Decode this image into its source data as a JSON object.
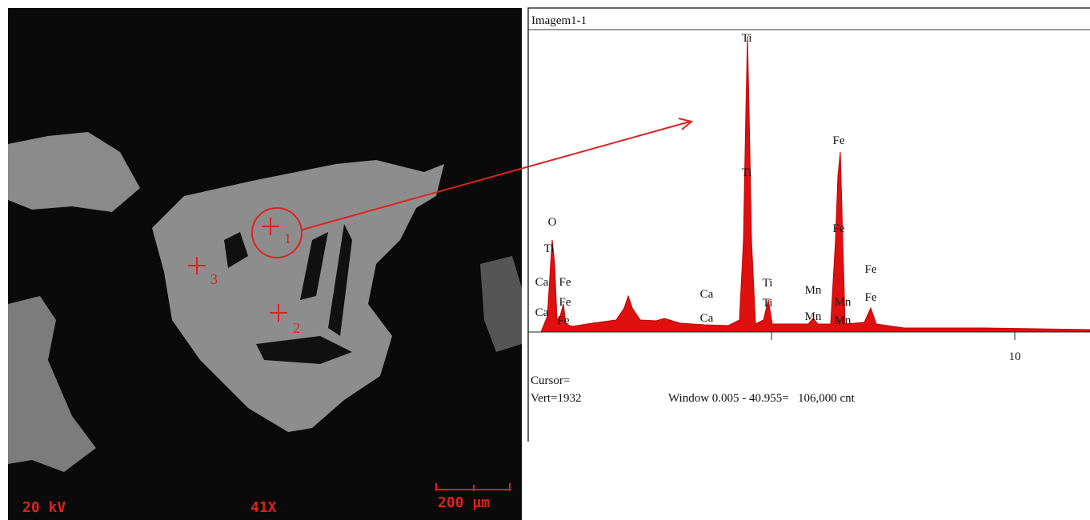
{
  "micrograph": {
    "voltage": "20 kV",
    "magnification": "41X",
    "scale_bar": "200 µm",
    "points": [
      "1",
      "2",
      "3"
    ]
  },
  "spectrum": {
    "title": "Imagem1-1",
    "x_tick": "10",
    "peak_labels": [
      "O",
      "Ti",
      "Ca",
      "Fe",
      "Ca",
      "Fe",
      "Fe",
      "Ca",
      "Ca",
      "Ti",
      "Ti",
      "Ti",
      "Ti",
      "Mn",
      "Mn",
      "Fe",
      "Fe",
      "Mn",
      "Mn",
      "Fe",
      "Fe"
    ],
    "cursor": "Cursor=",
    "vertical": "Vert=1932",
    "window": "Window 0.005 - 40.955=   106,000 cnt"
  }
}
